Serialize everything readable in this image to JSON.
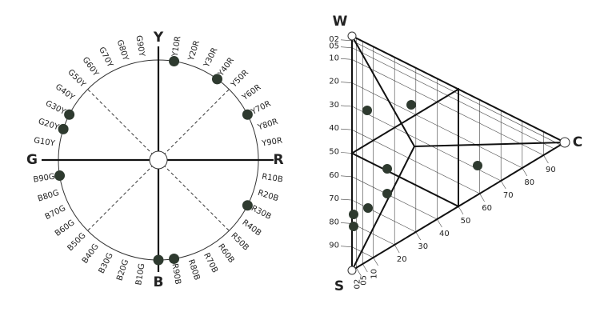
{
  "circle": {
    "axis_labels": {
      "top": "Y",
      "right": "R",
      "bottom": "B",
      "left": "G"
    },
    "hue_labels": [
      "Y10R",
      "Y20R",
      "Y30R",
      "Y40R",
      "Y50R",
      "Y60R",
      "Y70R",
      "Y80R",
      "Y90R",
      "R10B",
      "R20B",
      "R30B",
      "R40B",
      "R50B",
      "R60B",
      "R70B",
      "R80B",
      "R90B",
      "B10G",
      "B20G",
      "B30G",
      "B40G",
      "B50G",
      "B60G",
      "B70G",
      "B80G",
      "B90G",
      "G10Y",
      "G20Y",
      "G30Y",
      "G40Y",
      "G50Y",
      "G60Y",
      "G70Y",
      "G80Y",
      "G90Y"
    ]
  },
  "triangle": {
    "corners": {
      "white": "W",
      "black": "S",
      "chromatic": "C"
    },
    "blackness_scale": [
      "02",
      "05",
      "10",
      "20",
      "30",
      "40",
      "50",
      "60",
      "70",
      "80",
      "90"
    ],
    "chromaticness_scale": [
      "02",
      "05",
      "10",
      "20",
      "30",
      "40",
      "50",
      "60",
      "70",
      "80",
      "90"
    ]
  }
}
